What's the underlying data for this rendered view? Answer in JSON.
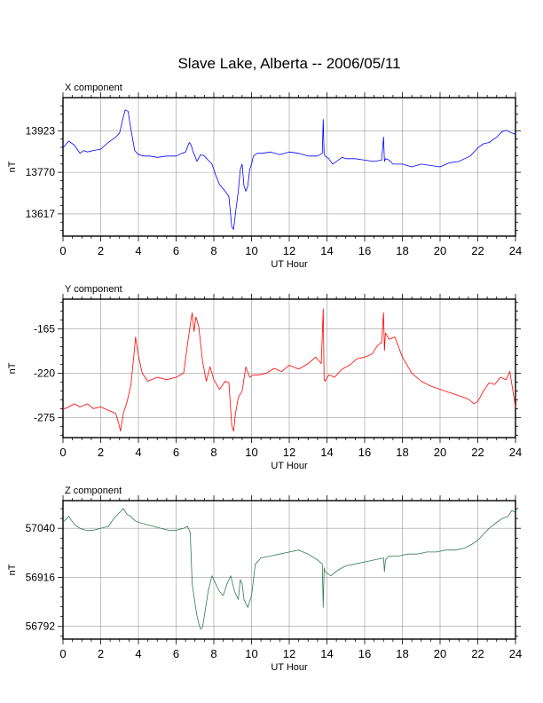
{
  "title": "Slave Lake, Alberta -- 2006/05/11",
  "chart_data": [
    {
      "type": "line",
      "panel_label": "X component",
      "xlabel": "UT Hour",
      "ylabel": "nT",
      "color": "#0000ff",
      "xlim": [
        0,
        24
      ],
      "ylim": [
        13535,
        14045
      ],
      "xticks": [
        0,
        2,
        4,
        6,
        8,
        10,
        12,
        14,
        16,
        18,
        20,
        22,
        24
      ],
      "xtick_labels": [
        "0",
        "2",
        "4",
        "6",
        "8",
        "10",
        "12",
        "14",
        "16",
        "18",
        "20",
        "22",
        "24"
      ],
      "yticks": [
        13923,
        13770,
        13617
      ],
      "ytick_labels": [
        "13923",
        "13770",
        "13617"
      ],
      "grid": true,
      "series": [
        {
          "x": [
            0,
            0.3,
            0.6,
            0.9,
            1.1,
            1.3,
            1.6,
            2.0,
            2.4,
            2.8,
            3.0,
            3.15,
            3.3,
            3.45,
            3.6,
            3.8,
            4.0,
            4.3,
            4.6,
            5.0,
            5.5,
            6.0,
            6.3,
            6.5,
            6.7,
            6.8,
            6.9,
            7.0,
            7.1,
            7.3,
            7.5,
            7.7,
            7.9,
            8.1,
            8.3,
            8.6,
            8.8,
            8.95,
            9.05,
            9.15,
            9.3,
            9.4,
            9.5,
            9.6,
            9.7,
            9.8,
            9.9,
            10.0,
            10.1,
            10.3,
            10.6,
            11.0,
            11.5,
            12.0,
            12.5,
            13.0,
            13.5,
            13.75,
            13.8,
            13.85,
            13.9,
            14.1,
            14.3,
            14.5,
            14.8,
            15.0,
            15.5,
            16.0,
            16.5,
            16.9,
            17.0,
            17.05,
            17.1,
            17.3,
            17.5,
            18.0,
            18.5,
            19.0,
            19.5,
            20.0,
            20.5,
            21.0,
            21.3,
            21.6,
            22.0,
            22.3,
            22.6,
            23.0,
            23.3,
            23.5,
            23.8,
            24.0
          ],
          "y": [
            13860,
            13885,
            13870,
            13840,
            13850,
            13845,
            13850,
            13855,
            13880,
            13900,
            13915,
            13960,
            14000,
            13995,
            13930,
            13850,
            13835,
            13830,
            13830,
            13825,
            13830,
            13830,
            13840,
            13845,
            13880,
            13870,
            13845,
            13830,
            13810,
            13835,
            13830,
            13815,
            13800,
            13760,
            13725,
            13700,
            13680,
            13570,
            13560,
            13620,
            13700,
            13780,
            13800,
            13720,
            13700,
            13720,
            13780,
            13800,
            13830,
            13840,
            13840,
            13845,
            13835,
            13845,
            13840,
            13830,
            13830,
            13840,
            13965,
            13835,
            13830,
            13820,
            13800,
            13810,
            13825,
            13820,
            13820,
            13815,
            13810,
            13815,
            13900,
            13810,
            13820,
            13815,
            13800,
            13800,
            13790,
            13800,
            13795,
            13790,
            13805,
            13810,
            13820,
            13830,
            13860,
            13875,
            13880,
            13900,
            13920,
            13925,
            13915,
            13910
          ]
        }
      ]
    },
    {
      "type": "line",
      "panel_label": "Y component",
      "xlabel": "UT Hour",
      "ylabel": "nT",
      "color": "#ff0000",
      "xlim": [
        0,
        24
      ],
      "ylim": [
        -300,
        -128
      ],
      "xticks": [
        0,
        2,
        4,
        6,
        8,
        10,
        12,
        14,
        16,
        18,
        20,
        22,
        24
      ],
      "xtick_labels": [
        "0",
        "2",
        "4",
        "6",
        "8",
        "10",
        "12",
        "14",
        "16",
        "18",
        "20",
        "22",
        "24"
      ],
      "yticks": [
        -165,
        -220,
        -275
      ],
      "ytick_labels": [
        "-165",
        "-220",
        "-275"
      ],
      "grid": true,
      "series": [
        {
          "x": [
            0,
            0.3,
            0.6,
            0.9,
            1.1,
            1.3,
            1.6,
            2.0,
            2.4,
            2.8,
            2.95,
            3.05,
            3.2,
            3.4,
            3.6,
            3.75,
            3.85,
            4.0,
            4.2,
            4.5,
            5.0,
            5.5,
            6.0,
            6.4,
            6.6,
            6.75,
            6.85,
            6.95,
            7.05,
            7.2,
            7.4,
            7.6,
            7.8,
            8.0,
            8.3,
            8.6,
            8.8,
            8.95,
            9.05,
            9.15,
            9.3,
            9.5,
            9.7,
            9.9,
            10.1,
            10.4,
            10.8,
            11.2,
            11.6,
            12.0,
            12.5,
            13.0,
            13.4,
            13.7,
            13.8,
            13.85,
            13.9,
            14.1,
            14.4,
            14.8,
            15.2,
            15.6,
            16.0,
            16.4,
            16.7,
            16.9,
            17.0,
            17.05,
            17.1,
            17.3,
            17.6,
            18.0,
            18.5,
            19.0,
            19.5,
            20.0,
            20.5,
            21.0,
            21.5,
            21.8,
            22.0,
            22.3,
            22.6,
            22.9,
            23.2,
            23.5,
            23.7,
            23.85,
            24.0
          ],
          "y": [
            -265,
            -262,
            -258,
            -262,
            -260,
            -258,
            -264,
            -262,
            -266,
            -270,
            -282,
            -292,
            -270,
            -255,
            -235,
            -200,
            -175,
            -198,
            -220,
            -230,
            -225,
            -228,
            -225,
            -220,
            -185,
            -160,
            -145,
            -168,
            -150,
            -162,
            -205,
            -230,
            -212,
            -228,
            -240,
            -230,
            -232,
            -285,
            -292,
            -270,
            -250,
            -242,
            -212,
            -225,
            -222,
            -222,
            -220,
            -214,
            -218,
            -210,
            -215,
            -208,
            -200,
            -208,
            -140,
            -228,
            -230,
            -222,
            -225,
            -215,
            -210,
            -202,
            -200,
            -196,
            -185,
            -182,
            -145,
            -192,
            -170,
            -178,
            -175,
            -200,
            -220,
            -230,
            -236,
            -240,
            -244,
            -248,
            -252,
            -258,
            -255,
            -242,
            -232,
            -234,
            -225,
            -228,
            -218,
            -240,
            -262
          ]
        }
      ]
    },
    {
      "type": "line",
      "panel_label": "Z component",
      "xlabel": "UT Hour",
      "ylabel": "nT",
      "color": "#2e7d4f",
      "xlim": [
        0,
        24
      ],
      "ylim": [
        56760,
        57110
      ],
      "xticks": [
        0,
        2,
        4,
        6,
        8,
        10,
        12,
        14,
        16,
        18,
        20,
        22,
        24
      ],
      "xtick_labels": [
        "0",
        "2",
        "4",
        "6",
        "8",
        "10",
        "12",
        "14",
        "16",
        "18",
        "20",
        "22",
        "24"
      ],
      "yticks": [
        57040,
        56916,
        56792
      ],
      "ytick_labels": [
        "57040",
        "56916",
        "56792"
      ],
      "grid": true,
      "series": [
        {
          "x": [
            0,
            0.3,
            0.6,
            0.9,
            1.2,
            1.6,
            2.0,
            2.4,
            2.7,
            3.0,
            3.2,
            3.4,
            3.6,
            3.8,
            4.0,
            4.4,
            4.8,
            5.2,
            5.6,
            6.0,
            6.4,
            6.6,
            6.75,
            6.85,
            7.0,
            7.1,
            7.2,
            7.3,
            7.4,
            7.5,
            7.7,
            7.9,
            8.1,
            8.3,
            8.5,
            8.7,
            8.9,
            9.1,
            9.3,
            9.4,
            9.5,
            9.6,
            9.7,
            9.8,
            10.0,
            10.2,
            10.5,
            11.0,
            11.5,
            12.0,
            12.5,
            13.0,
            13.5,
            13.75,
            13.8,
            13.85,
            13.9,
            14.2,
            14.6,
            15.0,
            15.5,
            16.0,
            16.5,
            17.0,
            17.05,
            17.1,
            17.3,
            17.8,
            18.3,
            18.8,
            19.3,
            19.8,
            20.3,
            20.8,
            21.3,
            21.7,
            22.0,
            22.3,
            22.6,
            23.0,
            23.3,
            23.6,
            23.8,
            24.0
          ],
          "y": [
            57055,
            57070,
            57050,
            57040,
            57035,
            57035,
            57040,
            57045,
            57065,
            57080,
            57090,
            57075,
            57070,
            57060,
            57055,
            57050,
            57045,
            57040,
            57035,
            57035,
            57040,
            57045,
            57030,
            56900,
            56850,
            56820,
            56800,
            56785,
            56790,
            56820,
            56880,
            56920,
            56900,
            56880,
            56870,
            56900,
            56920,
            56880,
            56860,
            56910,
            56900,
            56860,
            56850,
            56840,
            56870,
            56950,
            56965,
            56970,
            56975,
            56980,
            56985,
            56975,
            56960,
            56950,
            56840,
            56940,
            56930,
            56920,
            56935,
            56945,
            56950,
            56955,
            56960,
            56965,
            56930,
            56960,
            56970,
            56970,
            56975,
            56975,
            56980,
            56980,
            56985,
            56985,
            56990,
            57000,
            57010,
            57025,
            57040,
            57055,
            57065,
            57070,
            57085,
            57080
          ]
        }
      ]
    }
  ]
}
